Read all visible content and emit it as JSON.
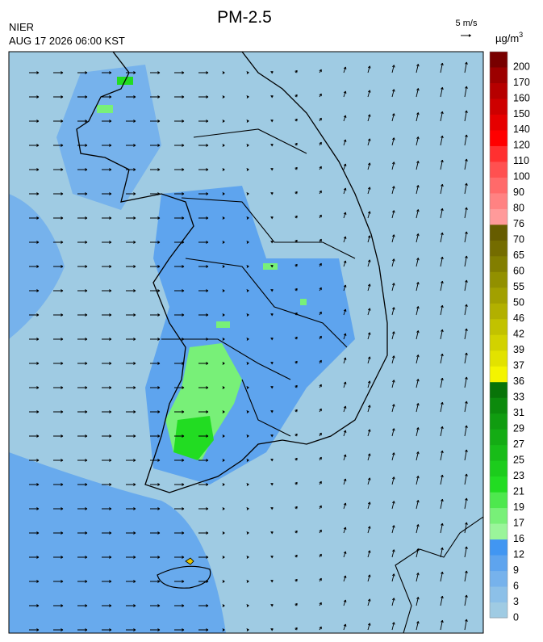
{
  "header": {
    "title": "PM-2.5",
    "source": "NIER",
    "datetime": "AUG 17 2026 06:00 KST",
    "wind_scale": "5 m/s",
    "unit": "µg/m",
    "unit_exponent": "3"
  },
  "legend": {
    "levels": [
      {
        "label": "0",
        "color": "#9fcbe3"
      },
      {
        "label": "3",
        "color": "#8cc0e8"
      },
      {
        "label": "6",
        "color": "#76b2ec"
      },
      {
        "label": "9",
        "color": "#5ea4ee"
      },
      {
        "label": "12",
        "color": "#4196f2"
      },
      {
        "label": "16",
        "color": "#9af59a"
      },
      {
        "label": "17",
        "color": "#78f078"
      },
      {
        "label": "19",
        "color": "#4ee84e"
      },
      {
        "label": "21",
        "color": "#22dc22"
      },
      {
        "label": "23",
        "color": "#1ccc1c"
      },
      {
        "label": "25",
        "color": "#18bc18"
      },
      {
        "label": "27",
        "color": "#14ac14"
      },
      {
        "label": "29",
        "color": "#109c10"
      },
      {
        "label": "31",
        "color": "#0c8a0c"
      },
      {
        "label": "33",
        "color": "#087408"
      },
      {
        "label": "36",
        "color": "#f4f400"
      },
      {
        "label": "37",
        "color": "#e2e200"
      },
      {
        "label": "39",
        "color": "#d2d200"
      },
      {
        "label": "42",
        "color": "#c2c200"
      },
      {
        "label": "46",
        "color": "#b2b000"
      },
      {
        "label": "50",
        "color": "#a2a000"
      },
      {
        "label": "55",
        "color": "#929000"
      },
      {
        "label": "60",
        "color": "#827e00"
      },
      {
        "label": "65",
        "color": "#746c00"
      },
      {
        "label": "70",
        "color": "#665c00"
      },
      {
        "label": "76",
        "color": "#ff9a9a"
      },
      {
        "label": "80",
        "color": "#ff8282"
      },
      {
        "label": "90",
        "color": "#ff6a6a"
      },
      {
        "label": "100",
        "color": "#ff5050"
      },
      {
        "label": "110",
        "color": "#ff3030"
      },
      {
        "label": "120",
        "color": "#ff0000"
      },
      {
        "label": "140",
        "color": "#e60000"
      },
      {
        "label": "150",
        "color": "#ce0000"
      },
      {
        "label": "160",
        "color": "#b60000"
      },
      {
        "label": "170",
        "color": "#9c0000"
      },
      {
        "label": "200",
        "color": "#780000"
      }
    ]
  }
}
